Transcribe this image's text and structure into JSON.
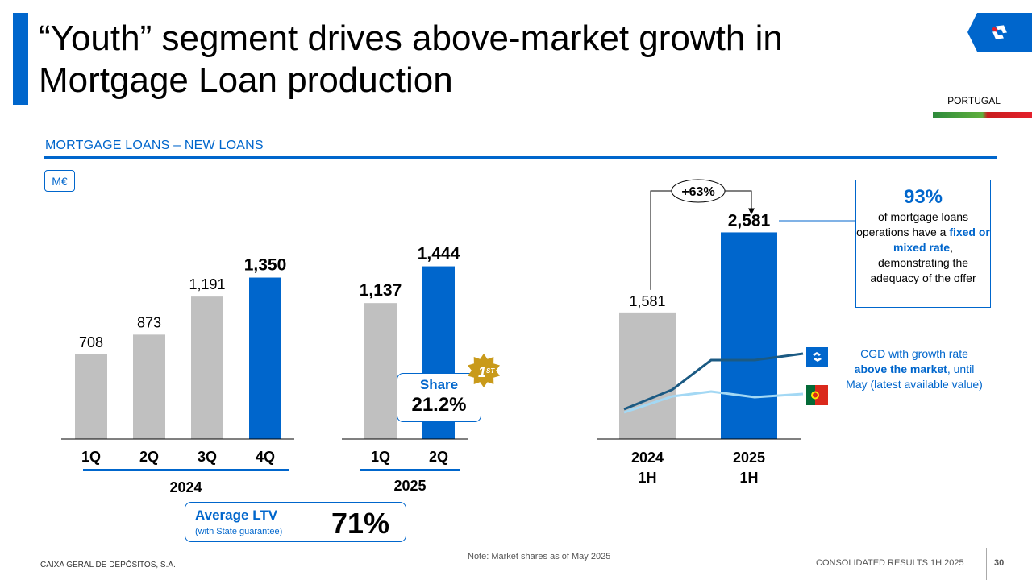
{
  "title": "“Youth” segment drives above-market growth in Mortgage Loan production",
  "country": "PORTUGAL",
  "section_title": "MORTGAGE LOANS – NEW LOANS",
  "unit": "M€",
  "colors": {
    "brand_blue": "#0066cc",
    "bar_grey": "#c0c0c0",
    "line_dark": "#1b5a83",
    "line_light": "#a3d8f4",
    "gold": "#c99a1a"
  },
  "chart_data": [
    {
      "type": "bar",
      "categories": [
        "1Q",
        "2Q",
        "3Q",
        "4Q",
        "1Q",
        "2Q"
      ],
      "groups": [
        {
          "label": "2024",
          "categories": [
            "1Q",
            "2Q",
            "3Q",
            "4Q"
          ]
        },
        {
          "label": "2025",
          "categories": [
            "1Q",
            "2Q"
          ]
        }
      ],
      "values": [
        708,
        873,
        1191,
        1350,
        1137,
        1444
      ],
      "value_labels": [
        "708",
        "873",
        "1,191",
        "1,350",
        "1,137",
        "1,444"
      ],
      "highlighted": [
        false,
        false,
        false,
        true,
        false,
        true
      ],
      "bold_labels": [
        false,
        false,
        false,
        true,
        true,
        true
      ]
    },
    {
      "type": "bar",
      "categories": [
        "2024 1H",
        "2025 1H"
      ],
      "category_lines": [
        [
          "2024",
          "1H"
        ],
        [
          "2025",
          "1H"
        ]
      ],
      "values": [
        1581,
        2581
      ],
      "value_labels": [
        "1,581",
        "2,581"
      ],
      "highlighted": [
        false,
        true
      ],
      "growth_label": "+63%",
      "series": [
        {
          "name": "CGD",
          "values": [
            0.4,
            1.0
          ]
        },
        {
          "name": "Market",
          "values": [
            0.2,
            0.4
          ]
        }
      ]
    }
  ],
  "share_badge": {
    "label": "Share",
    "value": "21.2%",
    "rank": "1",
    "rank_suffix": "ST"
  },
  "callout": {
    "big": "93%",
    "line1": "of mortgage loans operations have a",
    "bold": "fixed or mixed rate",
    "line2": ", demonstrating the adequacy of the offer"
  },
  "growth_note": {
    "line1": "CGD with growth rate",
    "bold": "above the market",
    "line2": ", until May (latest available value)"
  },
  "ltv": {
    "label": "Average LTV",
    "sub": "(with State guarantee)",
    "value": "71%"
  },
  "footer": {
    "left": "CAIXA GERAL DE DEPÓSITOS, S.A.",
    "note": "Note: Market shares as of May 2025",
    "right": "CONSOLIDATED RESULTS 1H 2025",
    "page": "30"
  },
  "icons": {
    "logo": "cgd-logo-icon",
    "flag": "portugal-flag-icon",
    "medal": "first-place-badge-icon"
  }
}
